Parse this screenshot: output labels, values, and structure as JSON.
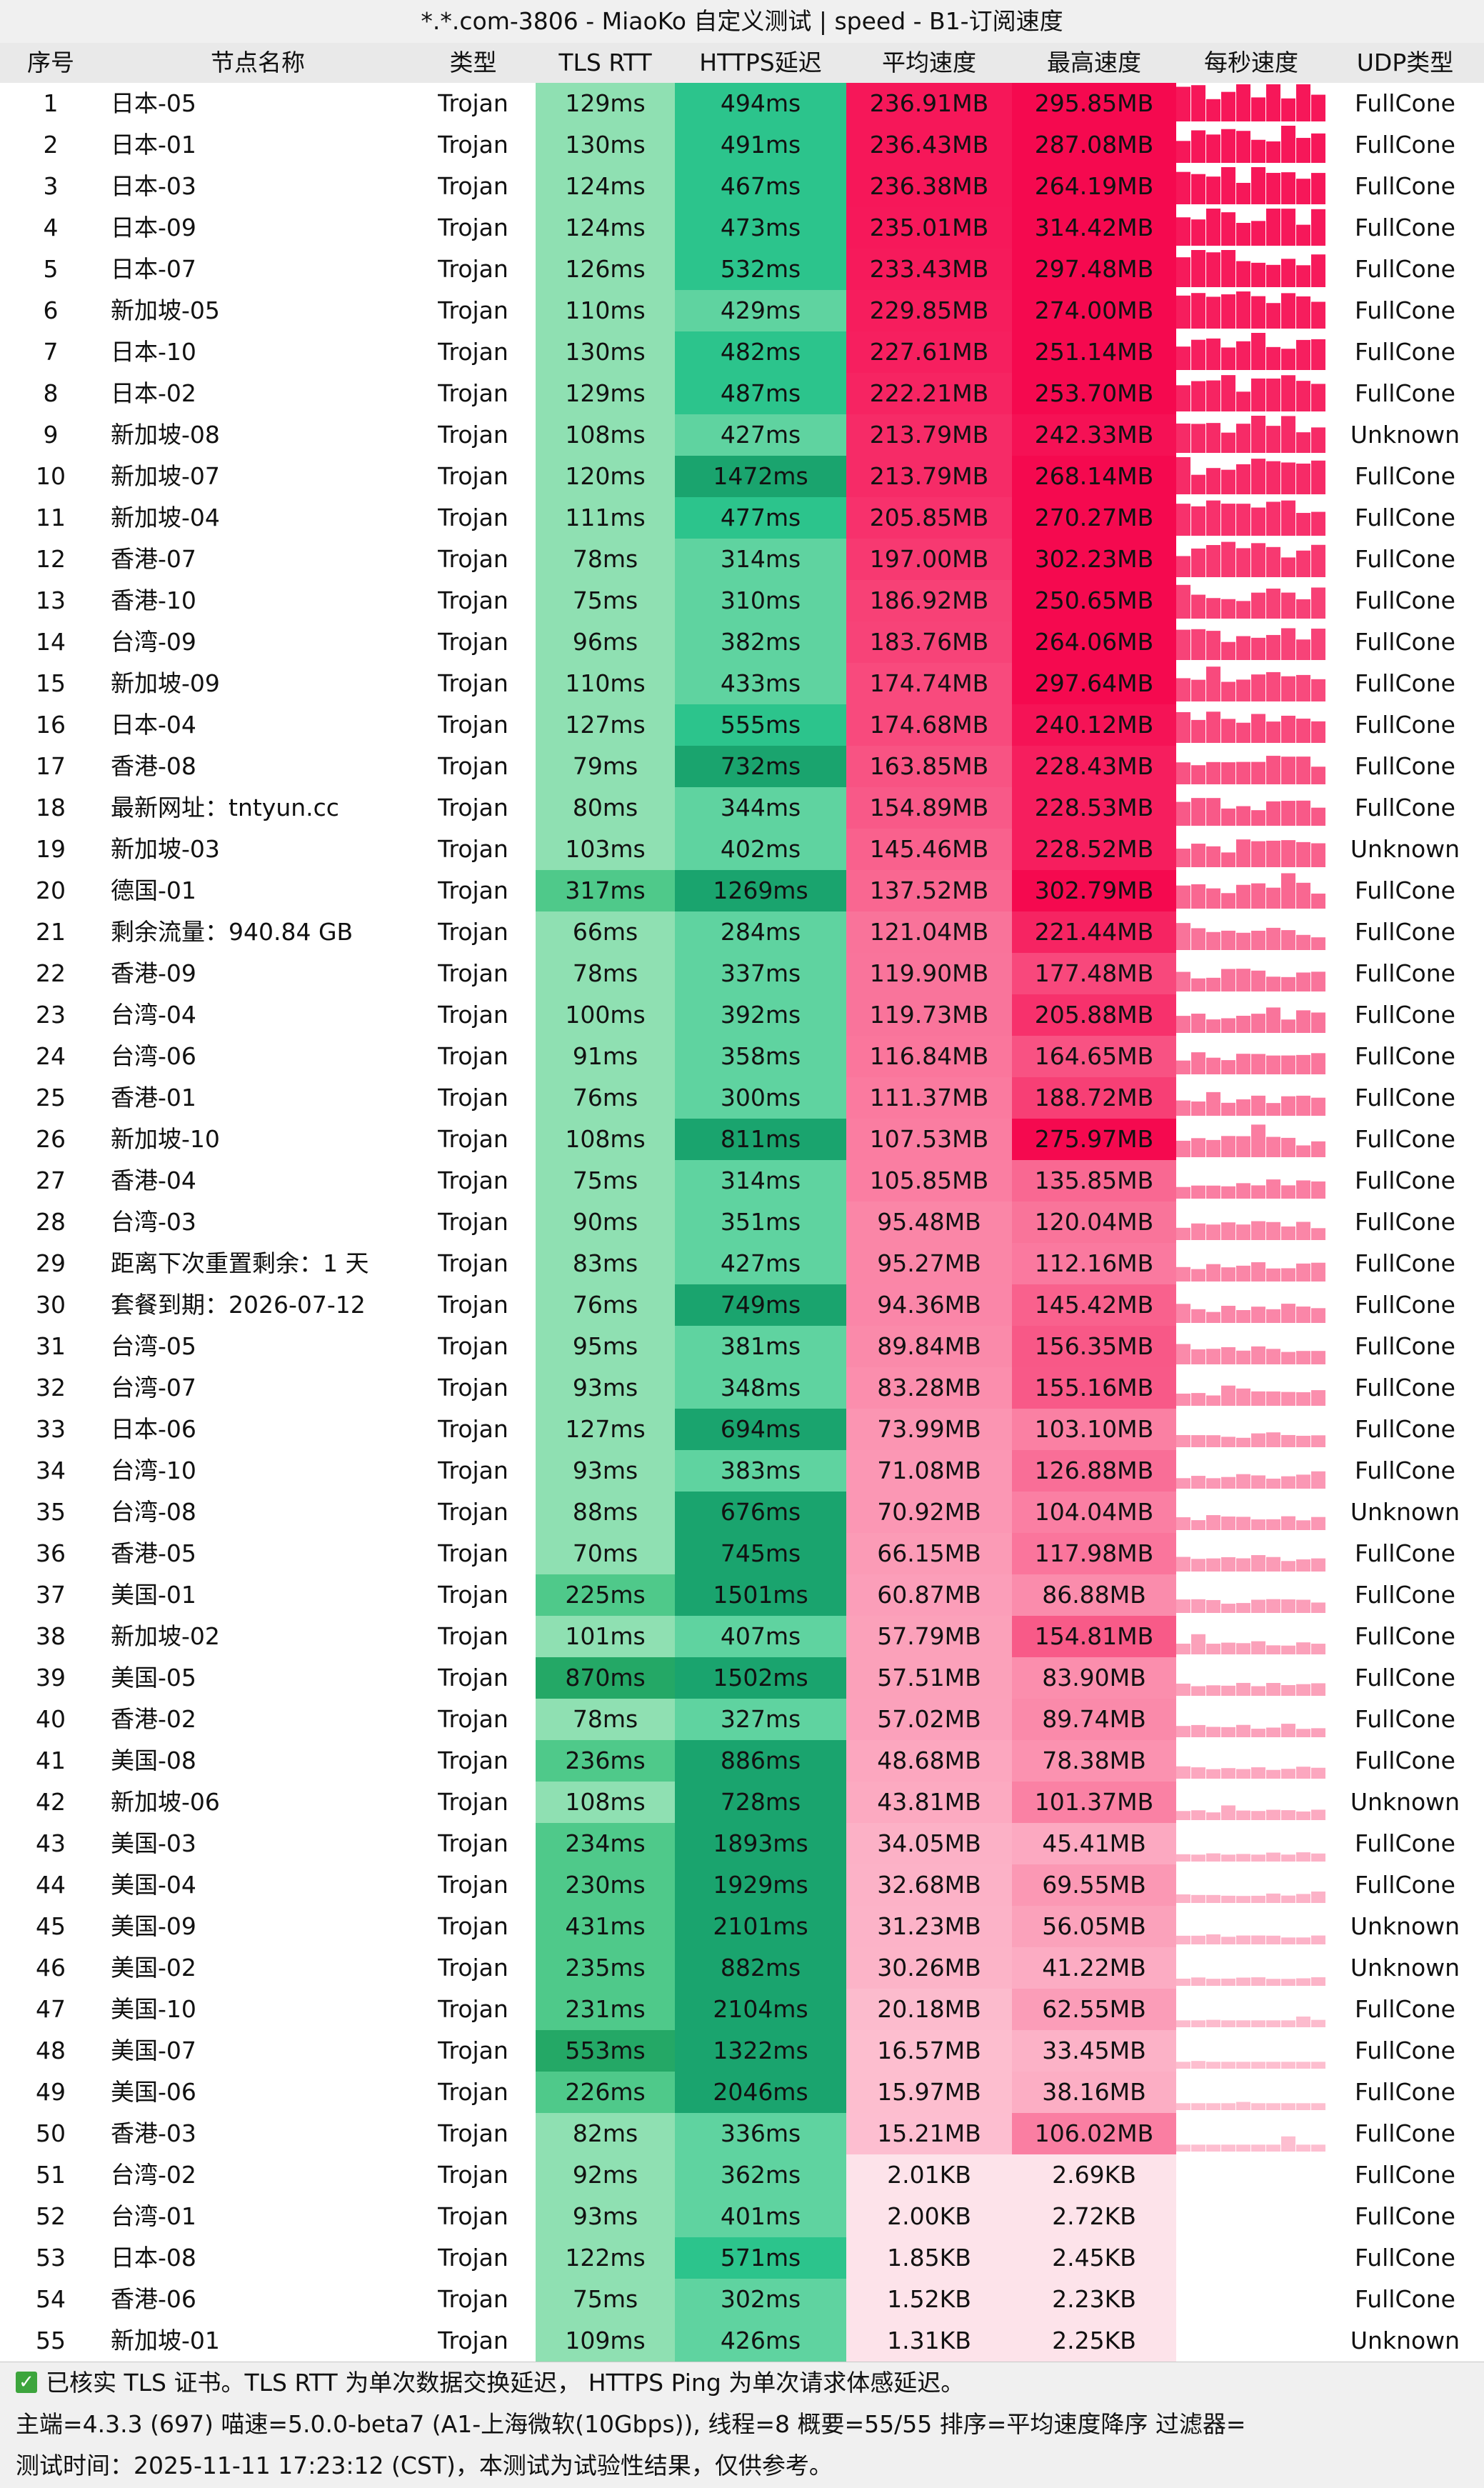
{
  "window": {
    "title": "*.*.com-3806 - MiaoKo 自定义测试 | speed - B1-订阅速度"
  },
  "headers": {
    "index": "序号",
    "name": "节点名称",
    "type": "类型",
    "tls_rtt": "TLS RTT",
    "https": "HTTPS延迟",
    "avg": "平均速度",
    "max": "最高速度",
    "per_sec": "每秒速度",
    "udp": "UDP类型"
  },
  "colors": {
    "tls_light": "#8fe0b2",
    "tls_mid": "#4fc98a",
    "tls_dark": "#24a866",
    "https_light": "#5fd3a0",
    "https_mid": "#2cc48c",
    "https_dark": "#1aa46e",
    "speed_top": "#f5094f",
    "speed_low": "#fde3ea",
    "spark": "#f33a6c"
  },
  "rows": [
    {
      "idx": "1",
      "name": "日本-05",
      "type": "Trojan",
      "tls": "129ms",
      "https": "494ms",
      "avg": "236.91MB",
      "max": "295.85MB",
      "udp": "FullCone"
    },
    {
      "idx": "2",
      "name": "日本-01",
      "type": "Trojan",
      "tls": "130ms",
      "https": "491ms",
      "avg": "236.43MB",
      "max": "287.08MB",
      "udp": "FullCone"
    },
    {
      "idx": "3",
      "name": "日本-03",
      "type": "Trojan",
      "tls": "124ms",
      "https": "467ms",
      "avg": "236.38MB",
      "max": "264.19MB",
      "udp": "FullCone"
    },
    {
      "idx": "4",
      "name": "日本-09",
      "type": "Trojan",
      "tls": "124ms",
      "https": "473ms",
      "avg": "235.01MB",
      "max": "314.42MB",
      "udp": "FullCone"
    },
    {
      "idx": "5",
      "name": "日本-07",
      "type": "Trojan",
      "tls": "126ms",
      "https": "532ms",
      "avg": "233.43MB",
      "max": "297.48MB",
      "udp": "FullCone"
    },
    {
      "idx": "6",
      "name": "新加坡-05",
      "type": "Trojan",
      "tls": "110ms",
      "https": "429ms",
      "avg": "229.85MB",
      "max": "274.00MB",
      "udp": "FullCone"
    },
    {
      "idx": "7",
      "name": "日本-10",
      "type": "Trojan",
      "tls": "130ms",
      "https": "482ms",
      "avg": "227.61MB",
      "max": "251.14MB",
      "udp": "FullCone"
    },
    {
      "idx": "8",
      "name": "日本-02",
      "type": "Trojan",
      "tls": "129ms",
      "https": "487ms",
      "avg": "222.21MB",
      "max": "253.70MB",
      "udp": "FullCone"
    },
    {
      "idx": "9",
      "name": "新加坡-08",
      "type": "Trojan",
      "tls": "108ms",
      "https": "427ms",
      "avg": "213.79MB",
      "max": "242.33MB",
      "udp": "Unknown"
    },
    {
      "idx": "10",
      "name": "新加坡-07",
      "type": "Trojan",
      "tls": "120ms",
      "https": "1472ms",
      "avg": "213.79MB",
      "max": "268.14MB",
      "udp": "FullCone"
    },
    {
      "idx": "11",
      "name": "新加坡-04",
      "type": "Trojan",
      "tls": "111ms",
      "https": "477ms",
      "avg": "205.85MB",
      "max": "270.27MB",
      "udp": "FullCone"
    },
    {
      "idx": "12",
      "name": "香港-07",
      "type": "Trojan",
      "tls": "78ms",
      "https": "314ms",
      "avg": "197.00MB",
      "max": "302.23MB",
      "udp": "FullCone"
    },
    {
      "idx": "13",
      "name": "香港-10",
      "type": "Trojan",
      "tls": "75ms",
      "https": "310ms",
      "avg": "186.92MB",
      "max": "250.65MB",
      "udp": "FullCone"
    },
    {
      "idx": "14",
      "name": "台湾-09",
      "type": "Trojan",
      "tls": "96ms",
      "https": "382ms",
      "avg": "183.76MB",
      "max": "264.06MB",
      "udp": "FullCone"
    },
    {
      "idx": "15",
      "name": "新加坡-09",
      "type": "Trojan",
      "tls": "110ms",
      "https": "433ms",
      "avg": "174.74MB",
      "max": "297.64MB",
      "udp": "FullCone"
    },
    {
      "idx": "16",
      "name": "日本-04",
      "type": "Trojan",
      "tls": "127ms",
      "https": "555ms",
      "avg": "174.68MB",
      "max": "240.12MB",
      "udp": "FullCone"
    },
    {
      "idx": "17",
      "name": "香港-08",
      "type": "Trojan",
      "tls": "79ms",
      "https": "732ms",
      "avg": "163.85MB",
      "max": "228.43MB",
      "udp": "FullCone"
    },
    {
      "idx": "18",
      "name": "最新网址：tntyun.cc",
      "type": "Trojan",
      "tls": "80ms",
      "https": "344ms",
      "avg": "154.89MB",
      "max": "228.53MB",
      "udp": "FullCone"
    },
    {
      "idx": "19",
      "name": "新加坡-03",
      "type": "Trojan",
      "tls": "103ms",
      "https": "402ms",
      "avg": "145.46MB",
      "max": "228.52MB",
      "udp": "Unknown"
    },
    {
      "idx": "20",
      "name": "德国-01",
      "type": "Trojan",
      "tls": "317ms",
      "https": "1269ms",
      "avg": "137.52MB",
      "max": "302.79MB",
      "udp": "FullCone"
    },
    {
      "idx": "21",
      "name": "剩余流量：940.84 GB",
      "type": "Trojan",
      "tls": "66ms",
      "https": "284ms",
      "avg": "121.04MB",
      "max": "221.44MB",
      "udp": "FullCone"
    },
    {
      "idx": "22",
      "name": "香港-09",
      "type": "Trojan",
      "tls": "78ms",
      "https": "337ms",
      "avg": "119.90MB",
      "max": "177.48MB",
      "udp": "FullCone"
    },
    {
      "idx": "23",
      "name": "台湾-04",
      "type": "Trojan",
      "tls": "100ms",
      "https": "392ms",
      "avg": "119.73MB",
      "max": "205.88MB",
      "udp": "FullCone"
    },
    {
      "idx": "24",
      "name": "台湾-06",
      "type": "Trojan",
      "tls": "91ms",
      "https": "358ms",
      "avg": "116.84MB",
      "max": "164.65MB",
      "udp": "FullCone"
    },
    {
      "idx": "25",
      "name": "香港-01",
      "type": "Trojan",
      "tls": "76ms",
      "https": "300ms",
      "avg": "111.37MB",
      "max": "188.72MB",
      "udp": "FullCone"
    },
    {
      "idx": "26",
      "name": "新加坡-10",
      "type": "Trojan",
      "tls": "108ms",
      "https": "811ms",
      "avg": "107.53MB",
      "max": "275.97MB",
      "udp": "FullCone"
    },
    {
      "idx": "27",
      "name": "香港-04",
      "type": "Trojan",
      "tls": "75ms",
      "https": "314ms",
      "avg": "105.85MB",
      "max": "135.85MB",
      "udp": "FullCone"
    },
    {
      "idx": "28",
      "name": "台湾-03",
      "type": "Trojan",
      "tls": "90ms",
      "https": "351ms",
      "avg": "95.48MB",
      "max": "120.04MB",
      "udp": "FullCone"
    },
    {
      "idx": "29",
      "name": "距离下次重置剩余：1 天",
      "type": "Trojan",
      "tls": "83ms",
      "https": "427ms",
      "avg": "95.27MB",
      "max": "112.16MB",
      "udp": "FullCone"
    },
    {
      "idx": "30",
      "name": "套餐到期：2026-07-12",
      "type": "Trojan",
      "tls": "76ms",
      "https": "749ms",
      "avg": "94.36MB",
      "max": "145.42MB",
      "udp": "FullCone"
    },
    {
      "idx": "31",
      "name": "台湾-05",
      "type": "Trojan",
      "tls": "95ms",
      "https": "381ms",
      "avg": "89.84MB",
      "max": "156.35MB",
      "udp": "FullCone"
    },
    {
      "idx": "32",
      "name": "台湾-07",
      "type": "Trojan",
      "tls": "93ms",
      "https": "348ms",
      "avg": "83.28MB",
      "max": "155.16MB",
      "udp": "FullCone"
    },
    {
      "idx": "33",
      "name": "日本-06",
      "type": "Trojan",
      "tls": "127ms",
      "https": "694ms",
      "avg": "73.99MB",
      "max": "103.10MB",
      "udp": "FullCone"
    },
    {
      "idx": "34",
      "name": "台湾-10",
      "type": "Trojan",
      "tls": "93ms",
      "https": "383ms",
      "avg": "71.08MB",
      "max": "126.88MB",
      "udp": "FullCone"
    },
    {
      "idx": "35",
      "name": "台湾-08",
      "type": "Trojan",
      "tls": "88ms",
      "https": "676ms",
      "avg": "70.92MB",
      "max": "104.04MB",
      "udp": "Unknown"
    },
    {
      "idx": "36",
      "name": "香港-05",
      "type": "Trojan",
      "tls": "70ms",
      "https": "745ms",
      "avg": "66.15MB",
      "max": "117.98MB",
      "udp": "FullCone"
    },
    {
      "idx": "37",
      "name": "美国-01",
      "type": "Trojan",
      "tls": "225ms",
      "https": "1501ms",
      "avg": "60.87MB",
      "max": "86.88MB",
      "udp": "FullCone"
    },
    {
      "idx": "38",
      "name": "新加坡-02",
      "type": "Trojan",
      "tls": "101ms",
      "https": "407ms",
      "avg": "57.79MB",
      "max": "154.81MB",
      "udp": "FullCone"
    },
    {
      "idx": "39",
      "name": "美国-05",
      "type": "Trojan",
      "tls": "870ms",
      "https": "1502ms",
      "avg": "57.51MB",
      "max": "83.90MB",
      "udp": "FullCone"
    },
    {
      "idx": "40",
      "name": "香港-02",
      "type": "Trojan",
      "tls": "78ms",
      "https": "327ms",
      "avg": "57.02MB",
      "max": "89.74MB",
      "udp": "FullCone"
    },
    {
      "idx": "41",
      "name": "美国-08",
      "type": "Trojan",
      "tls": "236ms",
      "https": "886ms",
      "avg": "48.68MB",
      "max": "78.38MB",
      "udp": "FullCone"
    },
    {
      "idx": "42",
      "name": "新加坡-06",
      "type": "Trojan",
      "tls": "108ms",
      "https": "728ms",
      "avg": "43.81MB",
      "max": "101.37MB",
      "udp": "Unknown"
    },
    {
      "idx": "43",
      "name": "美国-03",
      "type": "Trojan",
      "tls": "234ms",
      "https": "1893ms",
      "avg": "34.05MB",
      "max": "45.41MB",
      "udp": "FullCone"
    },
    {
      "idx": "44",
      "name": "美国-04",
      "type": "Trojan",
      "tls": "230ms",
      "https": "1929ms",
      "avg": "32.68MB",
      "max": "69.55MB",
      "udp": "FullCone"
    },
    {
      "idx": "45",
      "name": "美国-09",
      "type": "Trojan",
      "tls": "431ms",
      "https": "2101ms",
      "avg": "31.23MB",
      "max": "56.05MB",
      "udp": "Unknown"
    },
    {
      "idx": "46",
      "name": "美国-02",
      "type": "Trojan",
      "tls": "235ms",
      "https": "882ms",
      "avg": "30.26MB",
      "max": "41.22MB",
      "udp": "Unknown"
    },
    {
      "idx": "47",
      "name": "美国-10",
      "type": "Trojan",
      "tls": "231ms",
      "https": "2104ms",
      "avg": "20.18MB",
      "max": "62.55MB",
      "udp": "FullCone"
    },
    {
      "idx": "48",
      "name": "美国-07",
      "type": "Trojan",
      "tls": "553ms",
      "https": "1322ms",
      "avg": "16.57MB",
      "max": "33.45MB",
      "udp": "FullCone"
    },
    {
      "idx": "49",
      "name": "美国-06",
      "type": "Trojan",
      "tls": "226ms",
      "https": "2046ms",
      "avg": "15.97MB",
      "max": "38.16MB",
      "udp": "FullCone"
    },
    {
      "idx": "50",
      "name": "香港-03",
      "type": "Trojan",
      "tls": "82ms",
      "https": "336ms",
      "avg": "15.21MB",
      "max": "106.02MB",
      "udp": "FullCone"
    },
    {
      "idx": "51",
      "name": "台湾-02",
      "type": "Trojan",
      "tls": "92ms",
      "https": "362ms",
      "avg": "2.01KB",
      "max": "2.69KB",
      "udp": "FullCone"
    },
    {
      "idx": "52",
      "name": "台湾-01",
      "type": "Trojan",
      "tls": "93ms",
      "https": "401ms",
      "avg": "2.00KB",
      "max": "2.72KB",
      "udp": "FullCone"
    },
    {
      "idx": "53",
      "name": "日本-08",
      "type": "Trojan",
      "tls": "122ms",
      "https": "571ms",
      "avg": "1.85KB",
      "max": "2.45KB",
      "udp": "FullCone"
    },
    {
      "idx": "54",
      "name": "香港-06",
      "type": "Trojan",
      "tls": "75ms",
      "https": "302ms",
      "avg": "1.52KB",
      "max": "2.23KB",
      "udp": "FullCone"
    },
    {
      "idx": "55",
      "name": "新加坡-01",
      "type": "Trojan",
      "tls": "109ms",
      "https": "426ms",
      "avg": "1.31KB",
      "max": "2.25KB",
      "udp": "Unknown"
    }
  ],
  "footer": {
    "line1": "已核实 TLS 证书。TLS RTT 为单次数据交换延迟， HTTPS Ping 为单次请求体感延迟。",
    "line2": "主端=4.3.3 (697) 喵速=5.0.0-beta7 (A1-上海微软(10Gbps)), 线程=8 概要=55/55 排序=平均速度降序 过滤器=",
    "line3": "测试时间：2025-11-11 17:23:12 (CST)，本测试为试验性结果，仅供参考。"
  }
}
